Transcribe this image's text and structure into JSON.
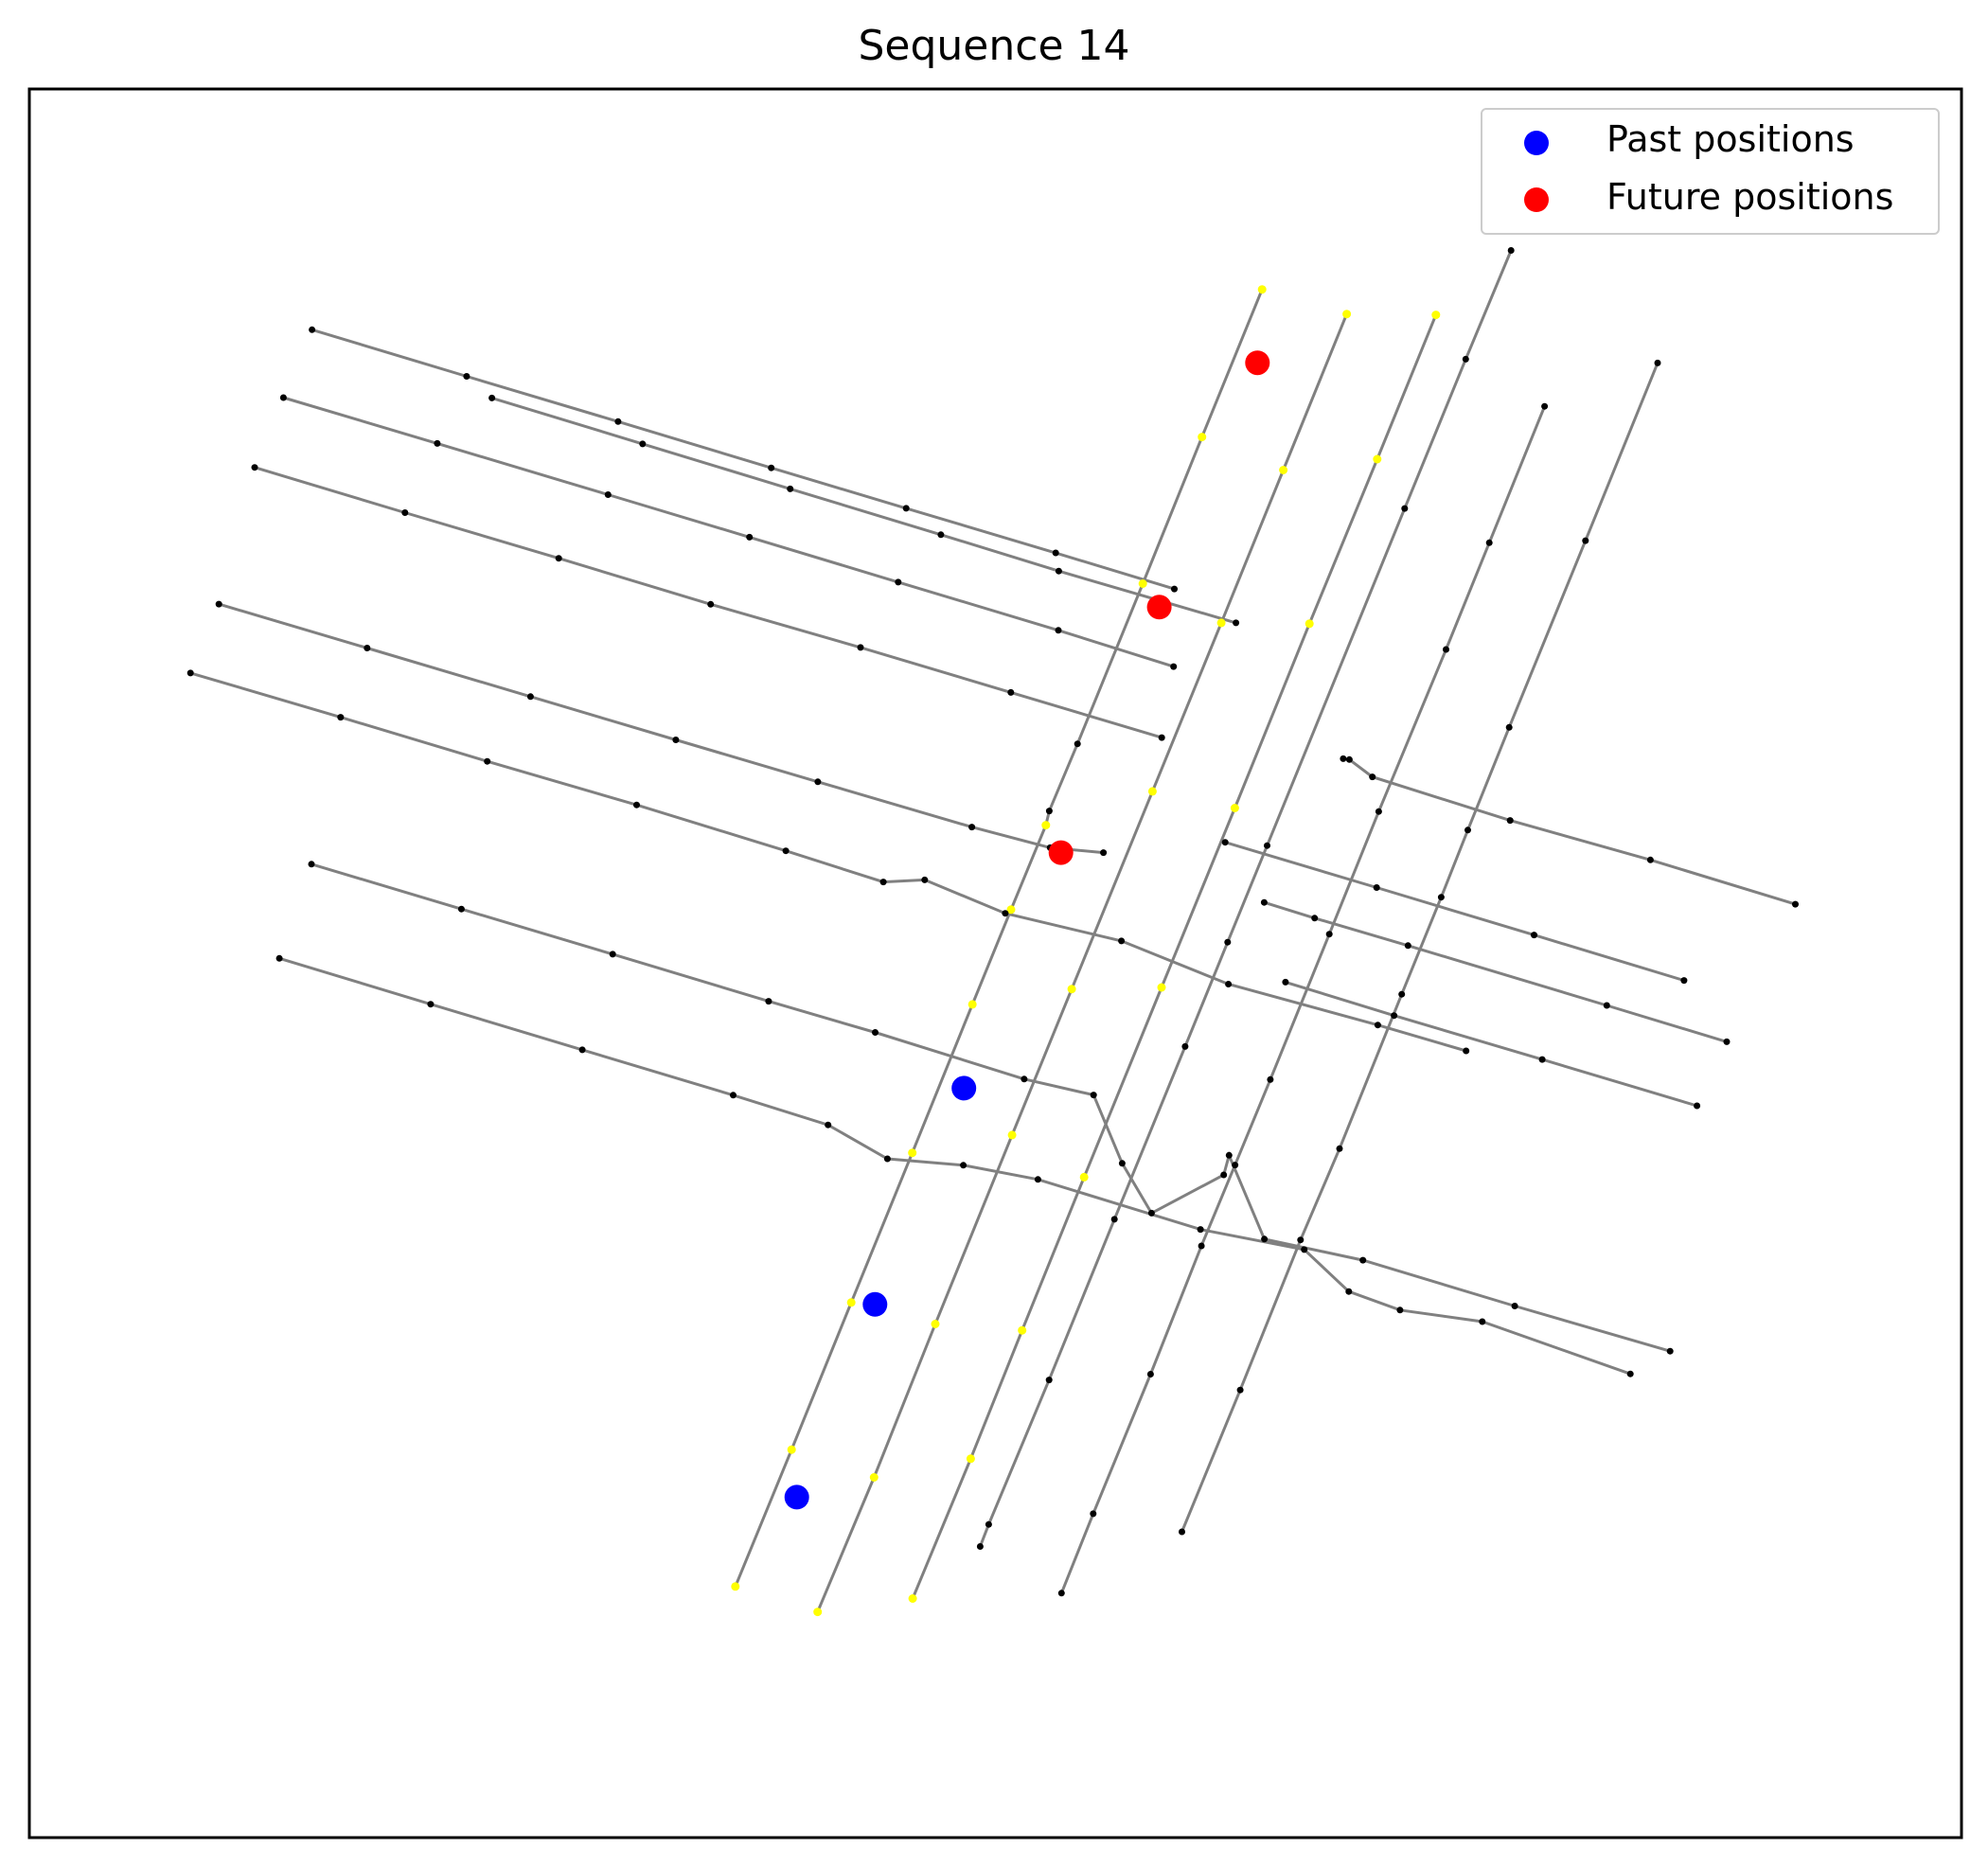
{
  "chart_data": {
    "type": "scatter",
    "title": "Sequence 14",
    "xlabel": "",
    "ylabel": "",
    "ticks": "none",
    "grid": false,
    "legend": {
      "placement": "top-right",
      "entries": [
        {
          "label": "Past positions",
          "color": "#0000ff",
          "marker": "circle"
        },
        {
          "label": "Future positions",
          "color": "#ff0000",
          "marker": "circle"
        }
      ]
    },
    "colors": {
      "lane": "#808080",
      "lane_point": "#000000",
      "traffic_control_point": "#ffff00",
      "past": "#0000ff",
      "future": "#ff0000"
    },
    "xlim": [
      0,
      1000
    ],
    "ylim": [
      0,
      1000
    ],
    "series": [
      {
        "name": "Past positions",
        "color": "#0000ff",
        "points": [
          [
            397.2,
            194.7
          ],
          [
            437.7,
            304.9
          ],
          [
            483.7,
            428.6
          ]
        ]
      },
      {
        "name": "Future positions",
        "color": "#ff0000",
        "points": [
          [
            533.9,
            563.3
          ],
          [
            584.8,
            703.7
          ],
          [
            635.6,
            843.4
          ]
        ]
      }
    ],
    "lane_polylines": [
      [
        [
          365.4,
          143.6
        ],
        [
          394.5,
          221.9
        ],
        [
          425.4,
          306.0
        ],
        [
          457.0,
          391.6
        ],
        [
          488.1,
          476.5
        ],
        [
          508.1,
          530.7
        ],
        [
          526.1,
          579.0
        ],
        [
          527.9,
          587.1
        ],
        [
          542.5,
          625.5
        ],
        [
          576.3,
          717.1
        ],
        [
          606.9,
          801.0
        ],
        [
          638.0,
          885.4
        ]
      ],
      [
        [
          408.0,
          129.1
        ],
        [
          437.2,
          206.0
        ],
        [
          468.9,
          293.7
        ],
        [
          508.6,
          401.8
        ],
        [
          539.5,
          485.3
        ],
        [
          581.3,
          598.3
        ],
        [
          616.9,
          694.7
        ],
        [
          649.0,
          782.1
        ],
        [
          681.8,
          871.3
        ]
      ],
      [
        [
          457.2,
          136.7
        ],
        [
          487.2,
          216.7
        ],
        [
          513.8,
          290.1
        ],
        [
          545.9,
          377.7
        ],
        [
          586.0,
          486.2
        ],
        [
          623.9,
          588.8
        ],
        [
          662.5,
          694.2
        ],
        [
          697.6,
          788.3
        ],
        [
          728.0,
          870.8
        ]
      ],
      [
        [
          492.1,
          166.5
        ],
        [
          496.5,
          179.1
        ],
        [
          527.8,
          261.7
        ],
        [
          561.6,
          353.6
        ],
        [
          598.2,
          452.4
        ],
        [
          620.2,
          512.1
        ],
        [
          640.6,
          567.3
        ],
        [
          711.8,
          760.1
        ],
        [
          743.4,
          845.5
        ],
        [
          766.9,
          907.7
        ]
      ],
      [
        [
          534.2,
          139.8
        ],
        [
          550.6,
          185.2
        ],
        [
          580.3,
          265.0
        ],
        [
          606.6,
          338.4
        ],
        [
          624.0,
          384.6
        ],
        [
          642.3,
          433.5
        ],
        [
          672.8,
          516.7
        ],
        [
          698.4,
          586.8
        ],
        [
          733.2,
          679.5
        ],
        [
          755.6,
          740.5
        ],
        [
          784.2,
          818.5
        ]
      ],
      [
        [
          596.5,
          174.9
        ],
        [
          626.7,
          256.0
        ],
        [
          657.9,
          341.8
        ],
        [
          678.1,
          394.0
        ],
        [
          710.3,
          482.3
        ],
        [
          730.7,
          537.8
        ],
        [
          744.5,
          576.2
        ],
        [
          765.9,
          634.9
        ],
        [
          805.4,
          741.7
        ],
        [
          842.7,
          843.3
        ]
      ]
    ],
    "crossroad_polylines": [
      [
        [
          239.4,
          823.3
        ],
        [
          317.4,
          797.0
        ],
        [
          393.8,
          771.3
        ],
        [
          471.8,
          745.1
        ],
        [
          532.8,
          724.3
        ],
        [
          624.5,
          694.7
        ]
      ],
      [
        [
          146.3,
          862.3
        ],
        [
          226.3,
          835.7
        ],
        [
          304.7,
          809.8
        ],
        [
          384.0,
          783.3
        ],
        [
          453.8,
          760.2
        ],
        [
          531.2,
          734.7
        ],
        [
          592.6,
          714.1
        ]
      ],
      [
        [
          131.5,
          823.5
        ],
        [
          211.1,
          797.3
        ],
        [
          299.5,
          768.0
        ],
        [
          372.7,
          743.7
        ],
        [
          449.7,
          718.0
        ],
        [
          532.6,
          690.4
        ],
        [
          592.2,
          669.7
        ]
      ],
      [
        [
          116.6,
          783.6
        ],
        [
          194.4,
          757.7
        ],
        [
          274.0,
          731.6
        ],
        [
          352.6,
          705.3
        ],
        [
          430.2,
          680.6
        ],
        [
          508.0,
          654.9
        ],
        [
          586.1,
          629.1
        ]
      ],
      [
        [
          98.1,
          705.4
        ],
        [
          174.8,
          680.3
        ],
        [
          259.4,
          652.5
        ],
        [
          334.6,
          627.8
        ],
        [
          408.1,
          603.8
        ],
        [
          487.8,
          577.9
        ],
        [
          528.3,
          566.1
        ],
        [
          555.9,
          563.3
        ]
      ],
      [
        [
          83.4,
          666.0
        ],
        [
          161.1,
          640.7
        ],
        [
          237.0,
          615.5
        ],
        [
          314.3,
          590.6
        ],
        [
          391.5,
          564.3
        ],
        [
          442.0,
          546.5
        ],
        [
          463.4,
          547.7
        ],
        [
          505.1,
          528.6
        ],
        [
          565.2,
          512.8
        ],
        [
          620.6,
          488.1
        ],
        [
          697.9,
          464.7
        ],
        [
          743.6,
          449.9
        ]
      ],
      [
        [
          146.0,
          556.7
        ],
        [
          223.6,
          531.0
        ],
        [
          301.9,
          505.2
        ],
        [
          382.6,
          478.3
        ],
        [
          437.8,
          460.5
        ],
        [
          514.9,
          433.8
        ],
        [
          550.8,
          424.7
        ],
        [
          565.6,
          385.6
        ],
        [
          580.8,
          357.1
        ],
        [
          618.2,
          379.0
        ],
        [
          620.9,
          390.2
        ],
        [
          639.2,
          342.3
        ],
        [
          690.2,
          330.2
        ],
        [
          768.8,
          304.0
        ],
        [
          849.2,
          278.2
        ]
      ],
      [
        [
          129.4,
          502.8
        ],
        [
          207.7,
          476.6
        ],
        [
          286.2,
          450.5
        ],
        [
          364.3,
          424.6
        ],
        [
          413.4,
          407.6
        ],
        [
          444.1,
          388.2
        ],
        [
          483.4,
          384.5
        ],
        [
          522.0,
          376.4
        ],
        [
          606.1,
          347.8
        ],
        [
          659.8,
          336.3
        ],
        [
          682.9,
          312.3
        ],
        [
          709.4,
          301.7
        ],
        [
          752.0,
          295.1
        ],
        [
          828.6,
          265.2
        ]
      ],
      [
        [
          618.9,
          569.2
        ],
        [
          697.3,
          543.3
        ],
        [
          778.8,
          516.2
        ],
        [
          856.4,
          490.2
        ]
      ],
      [
        [
          650.1,
          489.2
        ],
        [
          706.3,
          470.1
        ],
        [
          783.0,
          445.0
        ],
        [
          863.1,
          418.5
        ]
      ],
      [
        [
          639.1,
          534.8
        ],
        [
          665.2,
          525.8
        ],
        [
          713.5,
          510.1
        ],
        [
          816.4,
          475.9
        ],
        [
          878.5,
          455.1
        ]
      ],
      [
        [
          680.0,
          617.0
        ],
        [
          683.2,
          616.5
        ],
        [
          695.1,
          606.6
        ],
        [
          766.4,
          581.7
        ],
        [
          839.0,
          559.1
        ],
        [
          914.0,
          533.8
        ]
      ]
    ],
    "yellow_points": [
      [
        365.4,
        143.6
      ],
      [
        394.5,
        221.9
      ],
      [
        425.4,
        306.0
      ],
      [
        457.0,
        391.6
      ],
      [
        488.1,
        476.5
      ],
      [
        508.1,
        530.7
      ],
      [
        526.1,
        579.0
      ],
      [
        576.3,
        717.1
      ],
      [
        606.9,
        801.0
      ],
      [
        638.0,
        885.4
      ],
      [
        408.0,
        129.1
      ],
      [
        437.2,
        206.0
      ],
      [
        468.9,
        293.7
      ],
      [
        508.6,
        401.8
      ],
      [
        539.5,
        485.3
      ],
      [
        581.3,
        598.3
      ],
      [
        616.9,
        694.7
      ],
      [
        649.0,
        782.1
      ],
      [
        681.8,
        871.3
      ],
      [
        457.2,
        136.7
      ],
      [
        487.2,
        216.7
      ],
      [
        513.8,
        290.1
      ],
      [
        545.9,
        377.7
      ],
      [
        586.0,
        486.2
      ],
      [
        623.9,
        588.8
      ],
      [
        662.5,
        694.2
      ],
      [
        697.6,
        788.3
      ],
      [
        728.0,
        870.8
      ]
    ]
  }
}
